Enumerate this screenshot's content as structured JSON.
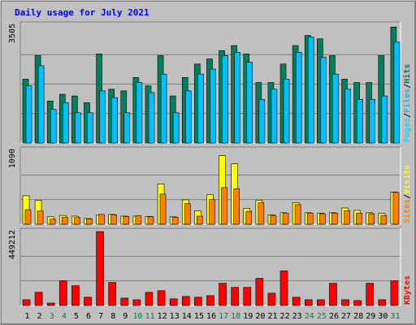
{
  "title": "Daily usage for July 2021",
  "colors": {
    "background": "#c0c0c0",
    "plot_bg": "#c0c0c0",
    "title": "#0000ff",
    "hits": "#00805c",
    "files": "#00c0ff",
    "pages": "#00e0ff",
    "sites": "#ff8000",
    "visits": "#ffff00",
    "kbytes": "#ff0000",
    "weekend_label": "#00805c"
  },
  "chart_data": [
    {
      "type": "bar",
      "name": "hits_files_pages",
      "scale_label": "3505",
      "ylim": [
        0,
        3505
      ],
      "right_labels": [
        "Pages",
        "Files",
        "Hits"
      ],
      "categories": [
        "1",
        "2",
        "3",
        "4",
        "5",
        "6",
        "7",
        "8",
        "9",
        "10",
        "11",
        "12",
        "13",
        "14",
        "15",
        "16",
        "17",
        "18",
        "19",
        "20",
        "21",
        "22",
        "23",
        "24",
        "25",
        "26",
        "27",
        "28",
        "29",
        "30",
        "31"
      ],
      "series": [
        {
          "name": "Hits",
          "values": [
            1900,
            2600,
            1250,
            1450,
            1400,
            1200,
            2650,
            1600,
            1550,
            1950,
            1700,
            2600,
            1400,
            1950,
            2350,
            2500,
            2750,
            2900,
            2650,
            1800,
            1800,
            2350,
            2900,
            3200,
            3100,
            2600,
            1900,
            1800,
            1800,
            2600,
            3450
          ]
        },
        {
          "name": "Files",
          "values": [
            1700,
            2300,
            1000,
            1200,
            900,
            900,
            1550,
            1350,
            900,
            1800,
            1500,
            2050,
            900,
            1550,
            2050,
            2200,
            2600,
            2700,
            2400,
            1300,
            1600,
            1900,
            2700,
            3150,
            2550,
            2050,
            1600,
            1300,
            1300,
            1400,
            3000
          ]
        },
        {
          "name": "Pages",
          "values": [
            0,
            0,
            0,
            0,
            0,
            0,
            0,
            0,
            0,
            0,
            0,
            0,
            0,
            0,
            0,
            0,
            0,
            0,
            0,
            0,
            0,
            0,
            0,
            0,
            0,
            0,
            0,
            0,
            0,
            0,
            0
          ]
        }
      ]
    },
    {
      "type": "bar",
      "name": "visits_sites",
      "scale_label": "1090",
      "ylim": [
        0,
        1090
      ],
      "right_labels": [
        "Sites",
        "Visits"
      ],
      "categories": [
        "1",
        "2",
        "3",
        "4",
        "5",
        "6",
        "7",
        "8",
        "9",
        "10",
        "11",
        "12",
        "13",
        "14",
        "15",
        "16",
        "17",
        "18",
        "19",
        "20",
        "21",
        "22",
        "23",
        "24",
        "25",
        "26",
        "27",
        "28",
        "29",
        "30",
        "31"
      ],
      "series": [
        {
          "name": "Visits",
          "values": [
            420,
            350,
            110,
            130,
            120,
            85,
            140,
            145,
            120,
            120,
            115,
            595,
            110,
            360,
            195,
            435,
            1010,
            890,
            235,
            355,
            140,
            170,
            320,
            170,
            165,
            170,
            240,
            205,
            170,
            160,
            475
          ]
        },
        {
          "name": "Sites",
          "values": [
            215,
            195,
            75,
            105,
            100,
            80,
            145,
            140,
            115,
            125,
            110,
            445,
            100,
            305,
            120,
            365,
            540,
            525,
            190,
            320,
            130,
            160,
            290,
            165,
            155,
            165,
            200,
            165,
            155,
            130,
            470
          ]
        }
      ]
    },
    {
      "type": "bar",
      "name": "kbytes",
      "scale_label": "449212",
      "ylim": [
        0,
        449212
      ],
      "right_labels": [
        "KBytes"
      ],
      "categories": [
        "1",
        "2",
        "3",
        "4",
        "5",
        "6",
        "7",
        "8",
        "9",
        "10",
        "11",
        "12",
        "13",
        "14",
        "15",
        "16",
        "17",
        "18",
        "19",
        "20",
        "21",
        "22",
        "23",
        "24",
        "25",
        "26",
        "27",
        "28",
        "29",
        "30",
        "31"
      ],
      "series": [
        {
          "name": "KBytes",
          "values": [
            35000,
            80000,
            15000,
            150000,
            120000,
            50000,
            450000,
            140000,
            45000,
            35000,
            80000,
            90000,
            40000,
            55000,
            50000,
            60000,
            135000,
            110000,
            110000,
            165000,
            75000,
            210000,
            50000,
            35000,
            35000,
            135000,
            35000,
            30000,
            135000,
            35000,
            150000
          ]
        }
      ]
    }
  ],
  "weekend_days": [
    3,
    4,
    10,
    11,
    17,
    18,
    24,
    25,
    31
  ]
}
